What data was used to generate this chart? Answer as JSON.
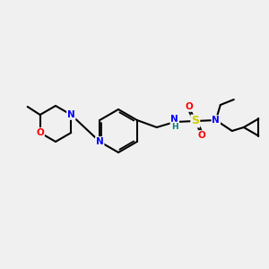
{
  "bg_color": "#f0f0f0",
  "bond_color": "#000000",
  "atom_colors": {
    "N": "#0000FF",
    "O": "#FF0000",
    "S": "#CCCC00",
    "C": "#000000",
    "H": "#008080"
  }
}
